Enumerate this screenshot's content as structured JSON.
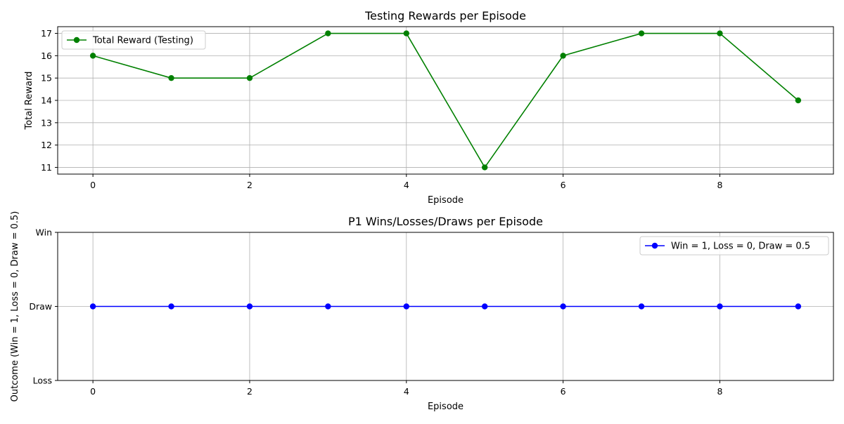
{
  "colors": {
    "green": "#008000",
    "blue": "#0000ff",
    "grid": "#b0b0b0",
    "axis": "#000000"
  },
  "chart_data": [
    {
      "type": "line",
      "title": "Testing Rewards per Episode",
      "xlabel": "Episode",
      "ylabel": "Total Reward",
      "x": [
        0,
        1,
        2,
        3,
        4,
        5,
        6,
        7,
        8,
        9
      ],
      "series": [
        {
          "name": "Total Reward (Testing)",
          "values": [
            16,
            15,
            15,
            17,
            17,
            11,
            16,
            17,
            17,
            14
          ],
          "color": "#008000",
          "marker": "circle"
        }
      ],
      "xlim": [
        -0.45,
        9.45
      ],
      "ylim": [
        10.7,
        17.3
      ],
      "xticks": [
        0,
        2,
        4,
        6,
        8
      ],
      "yticks": [
        11,
        12,
        13,
        14,
        15,
        16,
        17
      ],
      "ytick_labels": [
        "11",
        "12",
        "13",
        "14",
        "15",
        "16",
        "17"
      ],
      "grid": true,
      "legend": "top-left"
    },
    {
      "type": "line",
      "title": "P1 Wins/Losses/Draws per Episode",
      "xlabel": "Episode",
      "ylabel": "Outcome (Win = 1, Loss = 0, Draw = 0.5)",
      "x": [
        0,
        1,
        2,
        3,
        4,
        5,
        6,
        7,
        8,
        9
      ],
      "series": [
        {
          "name": "Win = 1, Loss = 0, Draw = 0.5",
          "values": [
            0.5,
            0.5,
            0.5,
            0.5,
            0.5,
            0.5,
            0.5,
            0.5,
            0.5,
            0.5
          ],
          "color": "#0000ff",
          "marker": "circle"
        }
      ],
      "xlim": [
        -0.45,
        9.45
      ],
      "ylim": [
        0,
        1
      ],
      "xticks": [
        0,
        2,
        4,
        6,
        8
      ],
      "yticks": [
        0,
        0.5,
        1
      ],
      "ytick_labels": [
        "Loss",
        "Draw",
        "Win"
      ],
      "grid": true,
      "legend": "top-right"
    }
  ]
}
